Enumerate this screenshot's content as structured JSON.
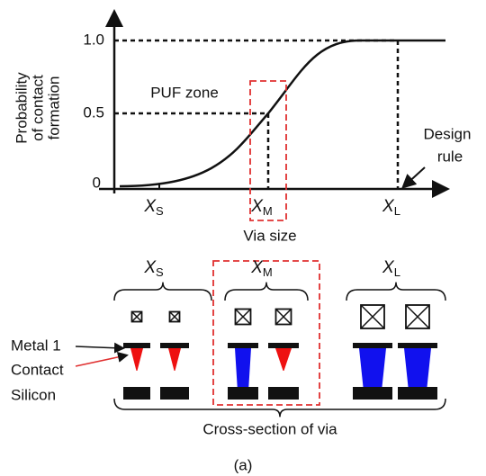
{
  "graph": {
    "y_axis_label": [
      "Probability",
      "of contact",
      "formation"
    ],
    "y_ticks": [
      "1.0",
      "0.5",
      "0"
    ],
    "x_ticks": [
      {
        "main": "X",
        "sub": "S"
      },
      {
        "main": "X",
        "sub": "M"
      },
      {
        "main": "X",
        "sub": "L"
      }
    ],
    "x_axis_label": "Via size",
    "zone_label": "PUF zone",
    "annotation": [
      "Design",
      "rule"
    ]
  },
  "cross_section": {
    "groups": [
      {
        "main": "X",
        "sub": "S"
      },
      {
        "main": "X",
        "sub": "M"
      },
      {
        "main": "X",
        "sub": "L"
      }
    ],
    "layers": [
      "Metal 1",
      "Contact",
      "Silicon"
    ],
    "caption": "Cross-section of via"
  },
  "figure_label": "(a)"
}
